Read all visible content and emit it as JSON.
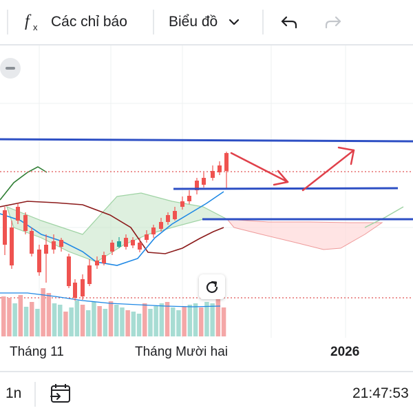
{
  "toolbar": {
    "indicators_label": "Các chỉ báo",
    "chart_type_label": "Biểu đồ",
    "icons": [
      "fx-icon",
      "chevron-down-icon",
      "undo-icon",
      "redo-icon"
    ]
  },
  "chart": {
    "x_labels": [
      "Tháng 11",
      "Tháng Mười hai",
      "2026"
    ],
    "colors": {
      "up": "#26a69a",
      "down": "#ef5350",
      "trendline": "#2d4fc4",
      "annotation": "#e0404a",
      "cloud_up": "#c8e6c9",
      "cloud_down": "#ffd9d9",
      "kijun": "#8b1a1a",
      "tenkan": "#1e88e5",
      "chikou": "#2e7d32"
    }
  },
  "bottom_bar": {
    "interval": "1n",
    "time": "21:47:53"
  }
}
